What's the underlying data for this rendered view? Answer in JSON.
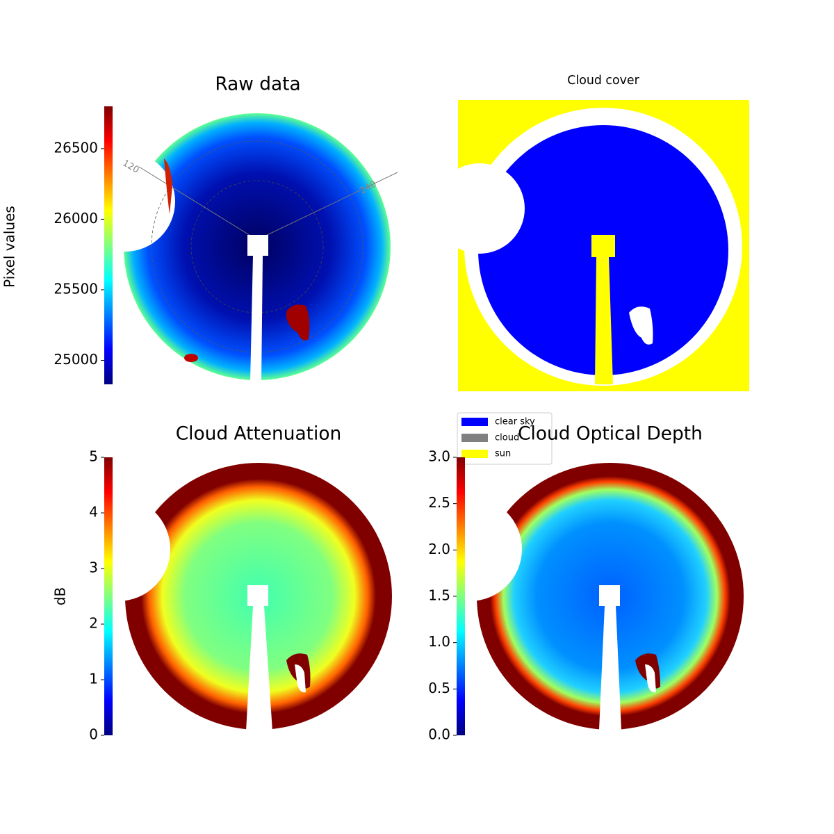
{
  "chart_data": [
    {
      "type": "image",
      "title": "Raw data",
      "colormap": "jet",
      "ylabel": "Pixel values",
      "ylim": [
        24830,
        26800
      ],
      "yticks": [
        25000,
        25500,
        26000,
        26500
      ],
      "annotations": [
        "120",
        "240"
      ]
    },
    {
      "type": "image",
      "title": "Cloud cover",
      "legend": [
        {
          "name": "clear sky",
          "color": "#0000ff"
        },
        {
          "name": "cloud",
          "color": "#808080"
        },
        {
          "name": "sun",
          "color": "#ffff00"
        }
      ]
    },
    {
      "type": "image",
      "title": "Cloud Attenuation",
      "colormap": "jet",
      "ylabel": "dB",
      "ylim": [
        0,
        5
      ],
      "yticks": [
        0,
        1,
        2,
        3,
        4,
        5
      ]
    },
    {
      "type": "image",
      "title": "Cloud Optical Depth",
      "colormap": "jet",
      "ylim": [
        0,
        3
      ],
      "yticks": [
        {
          "value": 0,
          "label": "0.0"
        },
        0.5,
        {
          "value": 1,
          "label": "1.0"
        },
        1.5,
        {
          "value": 2,
          "label": "2.0"
        },
        2.5,
        {
          "value": 3,
          "label": "3.0"
        }
      ]
    }
  ]
}
